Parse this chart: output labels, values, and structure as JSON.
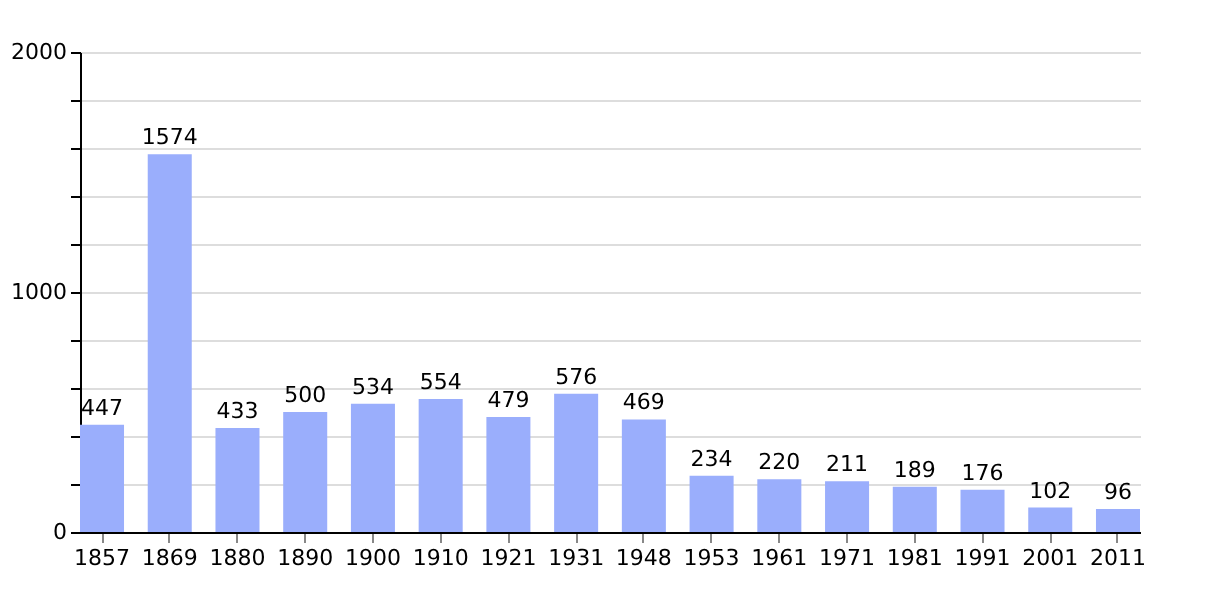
{
  "chart_data": {
    "type": "bar",
    "categories": [
      "1857",
      "1869",
      "1880",
      "1890",
      "1900",
      "1910",
      "1921",
      "1931",
      "1948",
      "1953",
      "1961",
      "1971",
      "1981",
      "1991",
      "2001",
      "2011"
    ],
    "values": [
      447,
      1574,
      433,
      500,
      534,
      554,
      479,
      576,
      469,
      234,
      220,
      211,
      189,
      176,
      102,
      96
    ],
    "color": "#9aaefc",
    "ylim": [
      0,
      2000
    ],
    "yticks": [
      0,
      {
        "value": 200,
        "label": null
      },
      {
        "value": 400,
        "label": null
      },
      {
        "value": 600,
        "label": null
      },
      {
        "value": 800,
        "label": null
      },
      1000,
      {
        "value": 1200,
        "label": null
      },
      {
        "value": 1400,
        "label": null
      },
      {
        "value": 1600,
        "label": null
      },
      {
        "value": 1800,
        "label": null
      },
      2000
    ],
    "grid": true,
    "data_labels": true
  }
}
